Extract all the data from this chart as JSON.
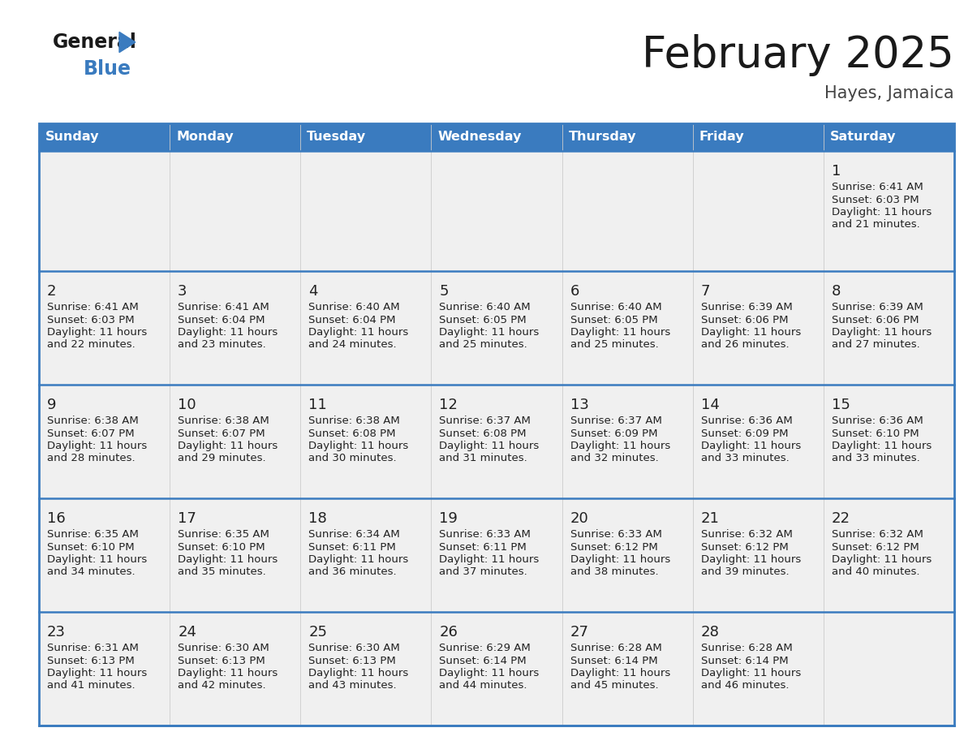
{
  "title": "February 2025",
  "subtitle": "Hayes, Jamaica",
  "days_of_week": [
    "Sunday",
    "Monday",
    "Tuesday",
    "Wednesday",
    "Thursday",
    "Friday",
    "Saturday"
  ],
  "header_bg": "#3a7bbf",
  "header_text": "#ffffff",
  "row_bg": "#f0f0f0",
  "cell_text_color": "#222222",
  "day_number_color": "#222222",
  "border_color": "#3a7bbf",
  "title_color": "#1a1a1a",
  "subtitle_color": "#444444",
  "calendar": [
    [
      null,
      null,
      null,
      null,
      null,
      null,
      {
        "day": 1,
        "sunrise": "6:41 AM",
        "sunset": "6:03 PM",
        "daylight": "11 hours",
        "daylight2": "and 21 minutes."
      }
    ],
    [
      {
        "day": 2,
        "sunrise": "6:41 AM",
        "sunset": "6:03 PM",
        "daylight": "11 hours",
        "daylight2": "and 22 minutes."
      },
      {
        "day": 3,
        "sunrise": "6:41 AM",
        "sunset": "6:04 PM",
        "daylight": "11 hours",
        "daylight2": "and 23 minutes."
      },
      {
        "day": 4,
        "sunrise": "6:40 AM",
        "sunset": "6:04 PM",
        "daylight": "11 hours",
        "daylight2": "and 24 minutes."
      },
      {
        "day": 5,
        "sunrise": "6:40 AM",
        "sunset": "6:05 PM",
        "daylight": "11 hours",
        "daylight2": "and 25 minutes."
      },
      {
        "day": 6,
        "sunrise": "6:40 AM",
        "sunset": "6:05 PM",
        "daylight": "11 hours",
        "daylight2": "and 25 minutes."
      },
      {
        "day": 7,
        "sunrise": "6:39 AM",
        "sunset": "6:06 PM",
        "daylight": "11 hours",
        "daylight2": "and 26 minutes."
      },
      {
        "day": 8,
        "sunrise": "6:39 AM",
        "sunset": "6:06 PM",
        "daylight": "11 hours",
        "daylight2": "and 27 minutes."
      }
    ],
    [
      {
        "day": 9,
        "sunrise": "6:38 AM",
        "sunset": "6:07 PM",
        "daylight": "11 hours",
        "daylight2": "and 28 minutes."
      },
      {
        "day": 10,
        "sunrise": "6:38 AM",
        "sunset": "6:07 PM",
        "daylight": "11 hours",
        "daylight2": "and 29 minutes."
      },
      {
        "day": 11,
        "sunrise": "6:38 AM",
        "sunset": "6:08 PM",
        "daylight": "11 hours",
        "daylight2": "and 30 minutes."
      },
      {
        "day": 12,
        "sunrise": "6:37 AM",
        "sunset": "6:08 PM",
        "daylight": "11 hours",
        "daylight2": "and 31 minutes."
      },
      {
        "day": 13,
        "sunrise": "6:37 AM",
        "sunset": "6:09 PM",
        "daylight": "11 hours",
        "daylight2": "and 32 minutes."
      },
      {
        "day": 14,
        "sunrise": "6:36 AM",
        "sunset": "6:09 PM",
        "daylight": "11 hours",
        "daylight2": "and 33 minutes."
      },
      {
        "day": 15,
        "sunrise": "6:36 AM",
        "sunset": "6:10 PM",
        "daylight": "11 hours",
        "daylight2": "and 33 minutes."
      }
    ],
    [
      {
        "day": 16,
        "sunrise": "6:35 AM",
        "sunset": "6:10 PM",
        "daylight": "11 hours",
        "daylight2": "and 34 minutes."
      },
      {
        "day": 17,
        "sunrise": "6:35 AM",
        "sunset": "6:10 PM",
        "daylight": "11 hours",
        "daylight2": "and 35 minutes."
      },
      {
        "day": 18,
        "sunrise": "6:34 AM",
        "sunset": "6:11 PM",
        "daylight": "11 hours",
        "daylight2": "and 36 minutes."
      },
      {
        "day": 19,
        "sunrise": "6:33 AM",
        "sunset": "6:11 PM",
        "daylight": "11 hours",
        "daylight2": "and 37 minutes."
      },
      {
        "day": 20,
        "sunrise": "6:33 AM",
        "sunset": "6:12 PM",
        "daylight": "11 hours",
        "daylight2": "and 38 minutes."
      },
      {
        "day": 21,
        "sunrise": "6:32 AM",
        "sunset": "6:12 PM",
        "daylight": "11 hours",
        "daylight2": "and 39 minutes."
      },
      {
        "day": 22,
        "sunrise": "6:32 AM",
        "sunset": "6:12 PM",
        "daylight": "11 hours",
        "daylight2": "and 40 minutes."
      }
    ],
    [
      {
        "day": 23,
        "sunrise": "6:31 AM",
        "sunset": "6:13 PM",
        "daylight": "11 hours",
        "daylight2": "and 41 minutes."
      },
      {
        "day": 24,
        "sunrise": "6:30 AM",
        "sunset": "6:13 PM",
        "daylight": "11 hours",
        "daylight2": "and 42 minutes."
      },
      {
        "day": 25,
        "sunrise": "6:30 AM",
        "sunset": "6:13 PM",
        "daylight": "11 hours",
        "daylight2": "and 43 minutes."
      },
      {
        "day": 26,
        "sunrise": "6:29 AM",
        "sunset": "6:14 PM",
        "daylight": "11 hours",
        "daylight2": "and 44 minutes."
      },
      {
        "day": 27,
        "sunrise": "6:28 AM",
        "sunset": "6:14 PM",
        "daylight": "11 hours",
        "daylight2": "and 45 minutes."
      },
      {
        "day": 28,
        "sunrise": "6:28 AM",
        "sunset": "6:14 PM",
        "daylight": "11 hours",
        "daylight2": "and 46 minutes."
      },
      null
    ]
  ]
}
